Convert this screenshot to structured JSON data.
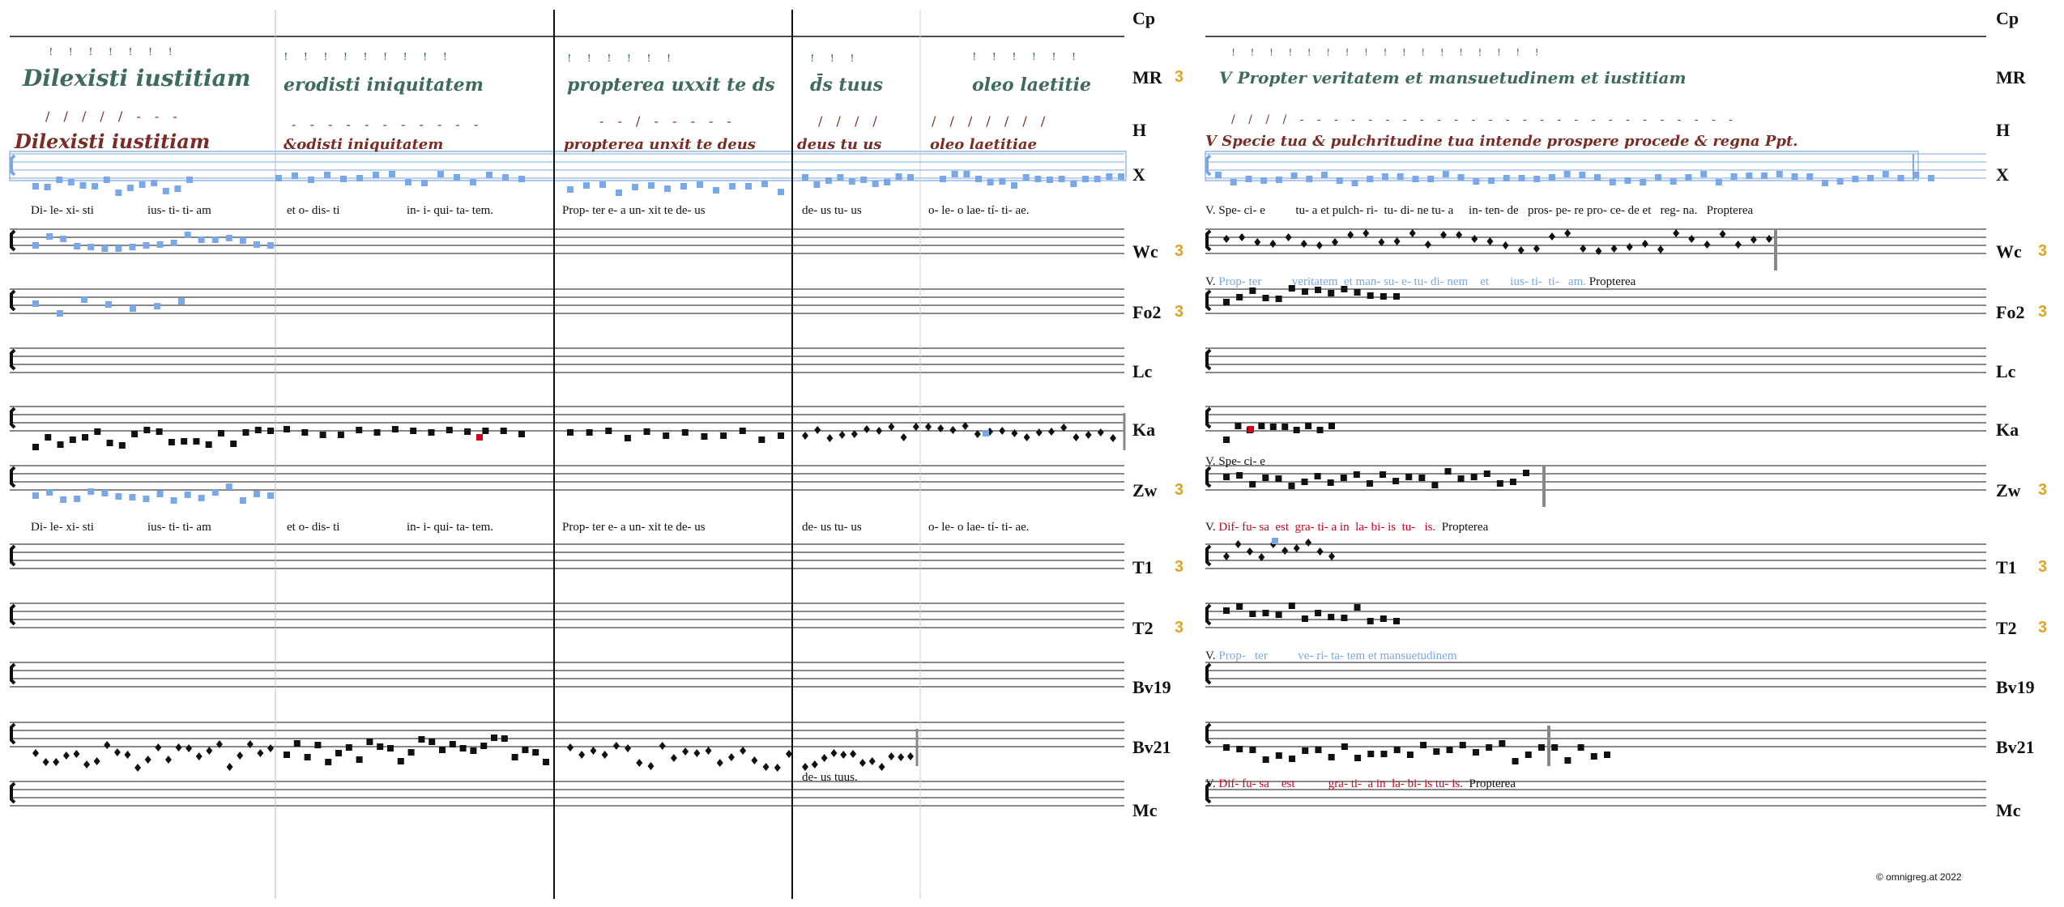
{
  "accent_colors": {
    "badge": "#e2a21b",
    "blue": "#7aa7e6",
    "red": "#d0021b",
    "ms_green": "#3f6b5e",
    "ms_red": "#7a2c25",
    "black": "#111111"
  },
  "left": {
    "sigla": [
      {
        "label": "Cp",
        "badge": ""
      },
      {
        "label": "MR",
        "badge": "3"
      },
      {
        "label": "H",
        "badge": ""
      },
      {
        "label": "X",
        "badge": ""
      },
      {
        "label": "Wc",
        "badge": "3"
      },
      {
        "label": "Fo2",
        "badge": "3"
      },
      {
        "label": "Lc",
        "badge": ""
      },
      {
        "label": "Ka",
        "badge": ""
      },
      {
        "label": "Zw",
        "badge": "3"
      },
      {
        "label": "T1",
        "badge": "3"
      },
      {
        "label": "T2",
        "badge": "3"
      },
      {
        "label": "Bv19",
        "badge": ""
      },
      {
        "label": "Bv21",
        "badge": ""
      },
      {
        "label": "Mc",
        "badge": ""
      }
    ],
    "mr_text": [
      "Dilexisti iustitiam",
      "erodisti iniquitatem",
      "propterea uxxit te ds",
      "d̄s tuus",
      "oleo laetitie"
    ],
    "h_text": [
      "Dilexisti iustitiam",
      "&odisti iniquitatem",
      "propterea unxit te deus",
      "deus tu us",
      "oleo laetitiae"
    ],
    "x_lyrics": [
      "Di- le- xi- sti",
      "ius- ti- ti- am",
      "et o- dis- ti",
      "in- i- qui- ta- tem.",
      "Prop- ter e- a un- xit te de- us",
      "de- us tu- us",
      "o- le- o lae- tí- ti- ae."
    ],
    "zw_lyrics": [
      "Di- le- xi- sti",
      "ius- ti- ti- am",
      "et o- dis- ti",
      "in- i- qui- ta- tem.",
      "Prop- ter e- a un- xit te de- us",
      "de- us tu- us",
      "o- le- o lae- tí- ti- ae."
    ],
    "bv21_lyric": "de- us tuus."
  },
  "right": {
    "sigla": [
      {
        "label": "Cp",
        "badge": ""
      },
      {
        "label": "MR",
        "badge": ""
      },
      {
        "label": "H",
        "badge": ""
      },
      {
        "label": "X",
        "badge": ""
      },
      {
        "label": "Wc",
        "badge": "3"
      },
      {
        "label": "Fo2",
        "badge": "3"
      },
      {
        "label": "Lc",
        "badge": ""
      },
      {
        "label": "Ka",
        "badge": ""
      },
      {
        "label": "Zw",
        "badge": "3"
      },
      {
        "label": "T1",
        "badge": "3"
      },
      {
        "label": "T2",
        "badge": "3"
      },
      {
        "label": "Bv19",
        "badge": ""
      },
      {
        "label": "Bv21",
        "badge": ""
      },
      {
        "label": "Mc",
        "badge": ""
      }
    ],
    "mr_text": "V Propter veritatem et mansuetudinem et iustitiam",
    "h_text": "V Specie tua & pulchritudine tua intende prospere procede & regna Ppt.",
    "x_lyric": "V. Spe- ci- e          tu- a et pulch- ri-  tu- di- ne tu- a     in- ten- de   pros- pe- re pro- ce- de et   reg- na.   Propterea",
    "wc_lyric": {
      "prefix": "V.",
      "blue": "Prop- ter          veritatem  et man- su- e- tu- di- nem    et       ius- ti-  ti-   am.",
      "tail": "Propterea"
    },
    "zw_lyric": "V. Spe- ci- e",
    "t1_lyric": {
      "prefix": "V.",
      "red": "Dif- fu- sa  est  gra- ti- a in  la- bi- is  tu-   is.",
      "tail": "Propterea"
    },
    "bv19_lyric": {
      "prefix": "V.",
      "blue": "Prop-   ter          ve- ri- ta- tem et mansuetudinem"
    },
    "mc_lyric": {
      "prefix": "V.",
      "red": "Dif- fu- sa    est           gra- ti-  a in  la- bi- is tu- is.",
      "tail": "Propterea"
    },
    "copyright": "© omnigreg.at  2022"
  }
}
